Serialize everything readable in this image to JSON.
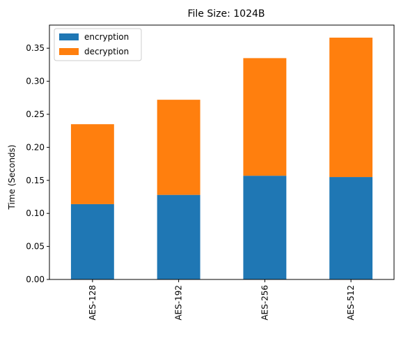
{
  "chart_data": {
    "type": "bar",
    "stacked": true,
    "title": "File Size: 1024B",
    "xlabel": "",
    "ylabel": "Time (Seconds)",
    "categories": [
      "AES-128",
      "AES-192",
      "AES-256",
      "AES-512"
    ],
    "series": [
      {
        "name": "encryption",
        "color": "#1f77b4",
        "values": [
          0.114,
          0.128,
          0.157,
          0.155
        ]
      },
      {
        "name": "decryption",
        "color": "#ff7f0e",
        "values": [
          0.121,
          0.144,
          0.178,
          0.211
        ]
      }
    ],
    "ylim": [
      0,
      0.385
    ],
    "yticks": [
      0.0,
      0.05,
      0.1,
      0.15,
      0.2,
      0.25,
      0.3,
      0.35
    ],
    "ytick_labels": [
      "0.00",
      "0.05",
      "0.10",
      "0.15",
      "0.20",
      "0.25",
      "0.30",
      "0.35"
    ],
    "legend_position": "top-left",
    "grid": false
  }
}
